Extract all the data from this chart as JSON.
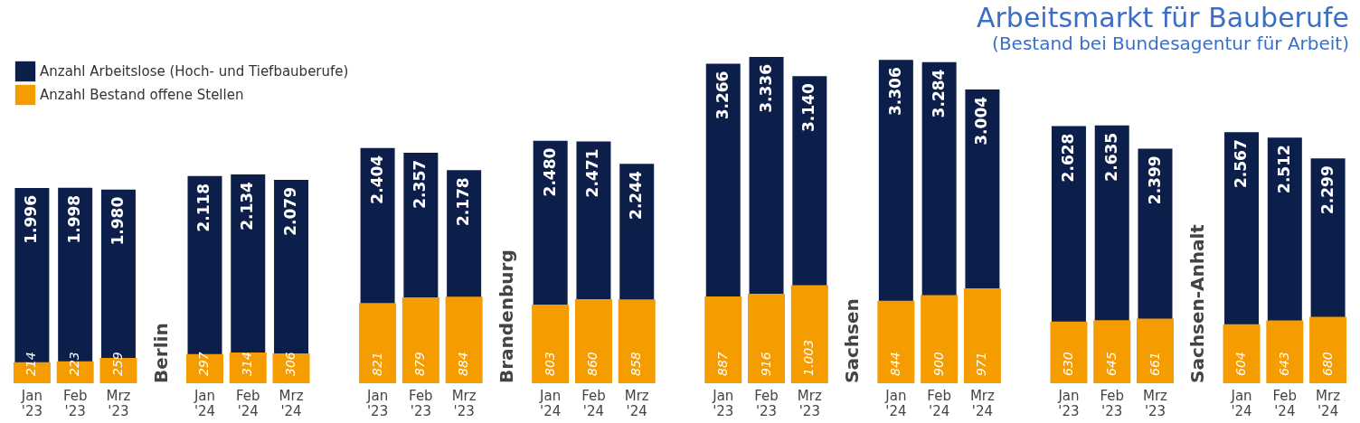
{
  "chart_data": {
    "type": "bar",
    "title": "Arbeitsmarkt für Bauberufe",
    "subtitle": "(Bestand bei Bundesagentur für Arbeit)",
    "categories": [
      "Jan '23",
      "Feb '23",
      "Mrz '23",
      null,
      "Jan '24",
      "Feb '24",
      "Mrz '24",
      null,
      "Jan '23",
      "Feb '23",
      "Mrz '23",
      null,
      "Jan '24",
      "Feb '24",
      "Mrz '24",
      null,
      "Jan '23",
      "Feb '23",
      "Mrz '23",
      null,
      "Jan '24",
      "Feb '24",
      "Mrz '24",
      null,
      "Jan '23",
      "Feb '23",
      "Mrz '23",
      null,
      "Jan '24",
      "Feb '24",
      "Mrz '24"
    ],
    "series": [
      {
        "name": "Anzahl Arbeitslose (Hoch- und Tiefbauberufe)",
        "color": "#0c1f4b",
        "values": [
          1996,
          1998,
          1980,
          null,
          2118,
          2134,
          2079,
          null,
          2404,
          2357,
          2178,
          null,
          2480,
          2471,
          2244,
          null,
          3266,
          3336,
          3140,
          null,
          3306,
          3284,
          3004,
          null,
          2628,
          2635,
          2399,
          null,
          2567,
          2512,
          2299
        ],
        "value_labels": [
          "1.996",
          "1.998",
          "1.980",
          null,
          "2.118",
          "2.134",
          "2.079",
          null,
          "2.404",
          "2.357",
          "2.178",
          null,
          "2.480",
          "2.471",
          "2.244",
          null,
          "3.266",
          "3.336",
          "3.140",
          null,
          "3.306",
          "3.284",
          "3.004",
          null,
          "2.628",
          "2.635",
          "2.399",
          null,
          "2.567",
          "2.512",
          "2.299"
        ]
      },
      {
        "name": "Anzahl Bestand offene Stellen",
        "color": "#f59c00",
        "values": [
          214,
          223,
          259,
          null,
          297,
          314,
          306,
          null,
          821,
          879,
          884,
          null,
          803,
          860,
          858,
          null,
          887,
          916,
          1003,
          null,
          844,
          900,
          971,
          null,
          630,
          645,
          661,
          null,
          604,
          643,
          680
        ],
        "value_labels": [
          "214",
          "223",
          "259",
          null,
          "297",
          "314",
          "306",
          null,
          "821",
          "879",
          "884",
          null,
          "803",
          "860",
          "858",
          null,
          "887",
          "916",
          "1.003",
          null,
          "844",
          "900",
          "971",
          null,
          "630",
          "645",
          "661",
          null,
          "604",
          "643",
          "680"
        ]
      }
    ],
    "annotations": [
      "Berlin",
      "Brandenburg",
      "Sachsen",
      "Sachsen-Anhalt"
    ],
    "legend": "top left",
    "grid": false
  }
}
